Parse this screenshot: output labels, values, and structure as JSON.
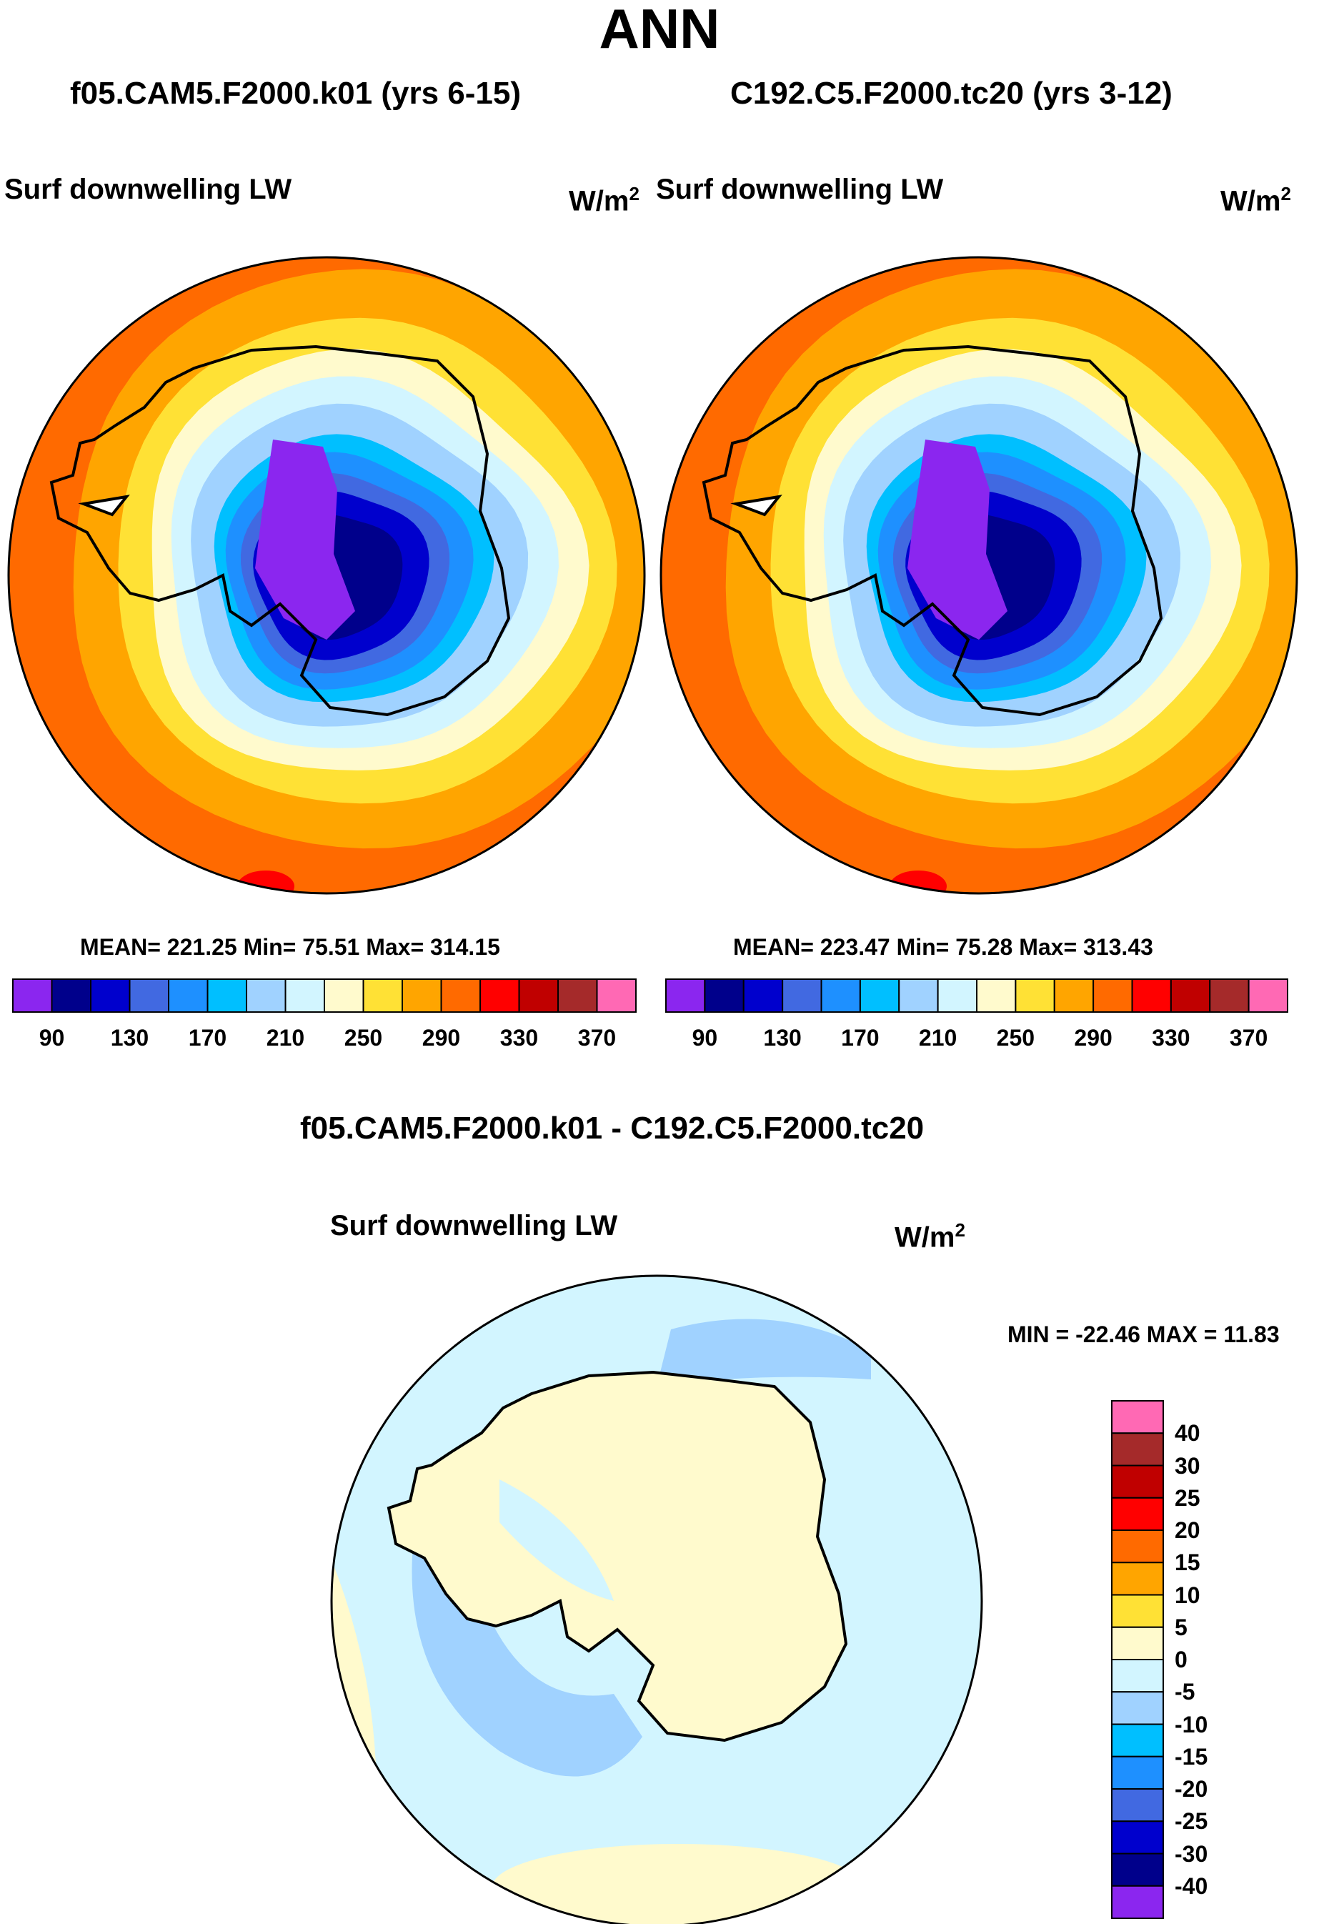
{
  "title": "ANN",
  "panels": [
    {
      "name": "f05.CAM5.F2000.k01 (yrs 6-15)",
      "variable": "Surf downwelling LW",
      "units": "W/m",
      "units_sup": "2",
      "stats": "MEAN= 221.25  Min=  75.51  Max= 314.15"
    },
    {
      "name": "C192.C5.F2000.tc20 (yrs 3-12)",
      "variable": "Surf downwelling LW",
      "units": "W/m",
      "units_sup": "2",
      "stats": "MEAN= 223.47  Min=  75.28  Max= 313.43"
    }
  ],
  "diff": {
    "name": "f05.CAM5.F2000.k01 - C192.C5.F2000.tc20",
    "variable": "Surf downwelling LW",
    "units": "W/m",
    "units_sup": "2",
    "stats": "MIN = -22.46 MAX =  11.83"
  },
  "chart_data": [
    {
      "type": "heatmap",
      "projection": "south-polar-stereographic",
      "title": "f05.CAM5.F2000.k01 (yrs 6-15)",
      "subtitle": "Surf downwelling LW",
      "units": "W/m2",
      "mean": 221.25,
      "min": 75.51,
      "max": 314.15,
      "colorbar_ticks": [
        "90",
        "130",
        "170",
        "210",
        "250",
        "290",
        "330",
        "370"
      ],
      "zones": [
        "#8b26ef",
        "#00008b",
        "#0000cd",
        "#4169e1",
        "#1e90ff",
        "#00bfff",
        "#a0d2ff",
        "#d2f5ff",
        "#fffacd",
        "#ffe135",
        "#ffa500",
        "#ff6a00",
        "#ff0000",
        "#c00000",
        "#a52a2a",
        "#ff69b4"
      ]
    },
    {
      "type": "heatmap",
      "projection": "south-polar-stereographic",
      "title": "C192.C5.F2000.tc20 (yrs 3-12)",
      "subtitle": "Surf downwelling LW",
      "units": "W/m2",
      "mean": 223.47,
      "min": 75.28,
      "max": 313.43,
      "colorbar_ticks": [
        "90",
        "130",
        "170",
        "210",
        "250",
        "290",
        "330",
        "370"
      ],
      "zones": [
        "#8b26ef",
        "#00008b",
        "#0000cd",
        "#4169e1",
        "#1e90ff",
        "#00bfff",
        "#a0d2ff",
        "#d2f5ff",
        "#fffacd",
        "#ffe135",
        "#ffa500",
        "#ff6a00",
        "#ff0000",
        "#c00000",
        "#a52a2a",
        "#ff69b4"
      ]
    },
    {
      "type": "heatmap",
      "projection": "south-polar-stereographic",
      "title": "f05.CAM5.F2000.k01 - C192.C5.F2000.tc20",
      "subtitle": "Surf downwelling LW",
      "units": "W/m2",
      "min": -22.46,
      "max": 11.83,
      "colorbar_ticks": [
        "40",
        "30",
        "25",
        "20",
        "15",
        "10",
        "5",
        "0",
        "-5",
        "-10",
        "-15",
        "-20",
        "-25",
        "-30",
        "-40"
      ],
      "zones": [
        "#ff69b4",
        "#a52a2a",
        "#c00000",
        "#ff0000",
        "#ff6a00",
        "#ffa500",
        "#ffe135",
        "#fffacd",
        "#d2f5ff",
        "#a0d2ff",
        "#00bfff",
        "#1e90ff",
        "#4169e1",
        "#0000cd",
        "#00008b",
        "#8b26ef"
      ]
    }
  ]
}
